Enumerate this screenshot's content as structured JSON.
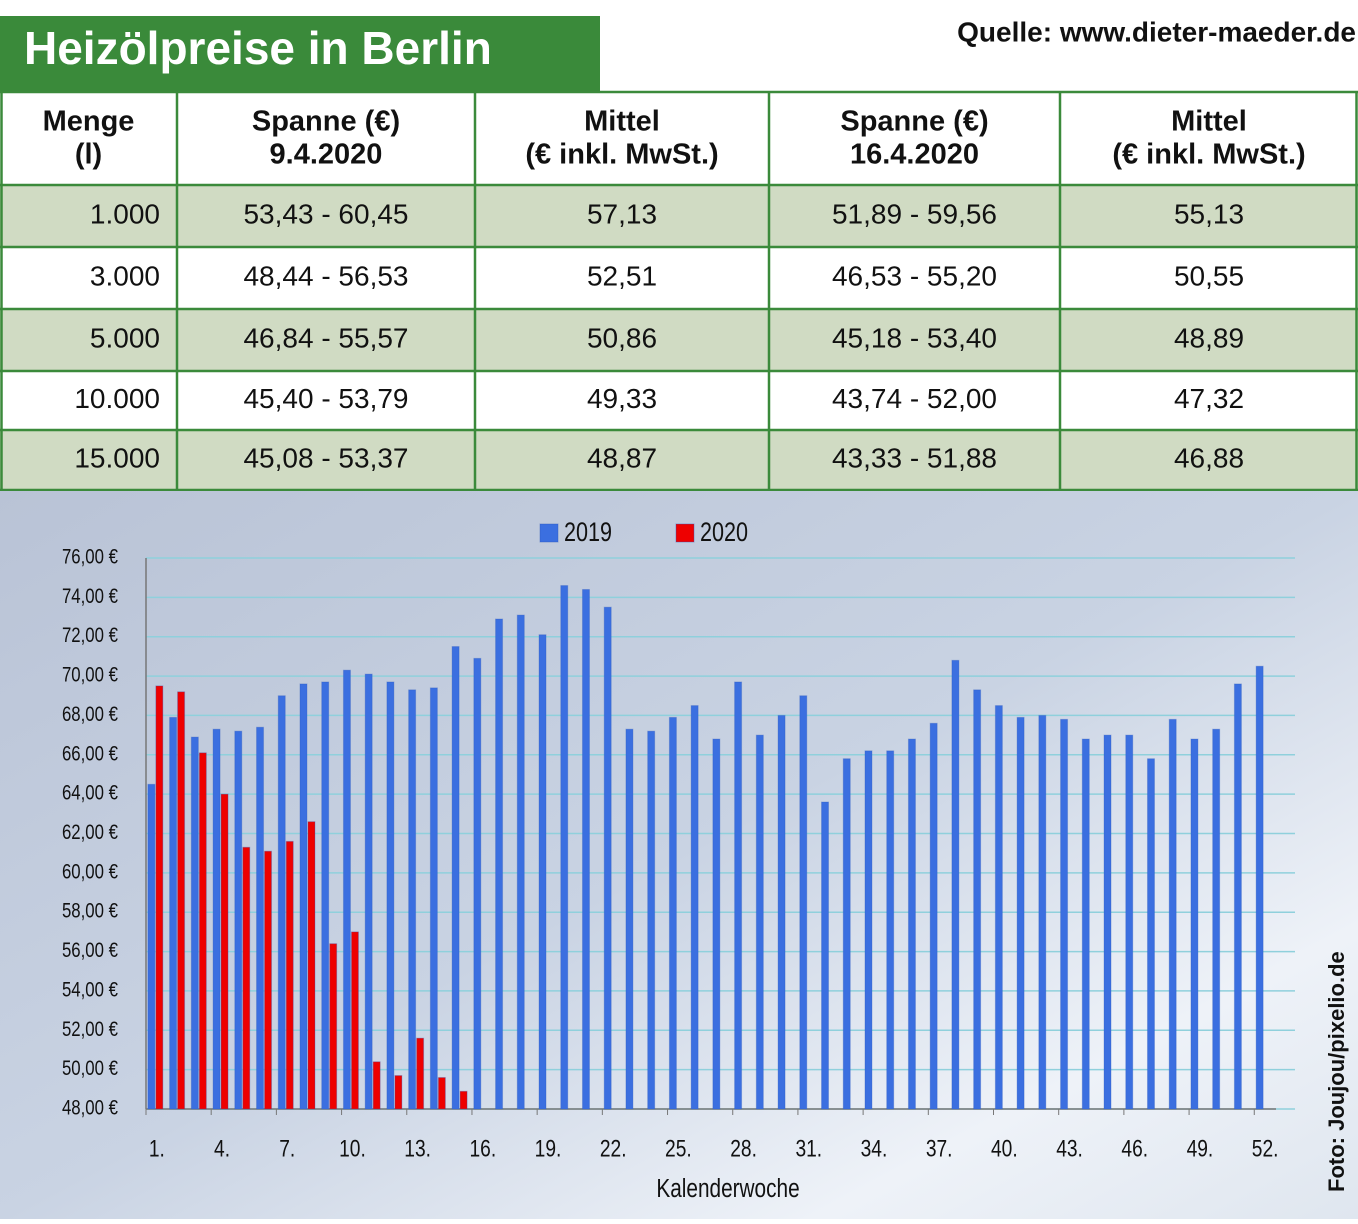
{
  "header": {
    "title": "Heizölpreise in Berlin",
    "source": "Quelle: www.dieter-maeder.de"
  },
  "table": {
    "columns": [
      [
        "Menge",
        "(l)"
      ],
      [
        "Spanne (€)",
        "9.4.2020"
      ],
      [
        "Mittel",
        "(€ inkl. MwSt.)"
      ],
      [
        "Spanne (€)",
        "16.4.2020"
      ],
      [
        "Mittel",
        "(€ inkl. MwSt.)"
      ]
    ],
    "rows": [
      [
        "1.000",
        "53,43 - 60,45",
        "57,13",
        "51,89 - 59,56",
        "55,13"
      ],
      [
        "3.000",
        "48,44 - 56,53",
        "52,51",
        "46,53 - 55,20",
        "50,55"
      ],
      [
        "5.000",
        "46,84 - 55,57",
        "50,86",
        "45,18 - 53,40",
        "48,89"
      ],
      [
        "10.000",
        "45,40 - 53,79",
        "49,33",
        "43,74 - 52,00",
        "47,32"
      ],
      [
        "15.000",
        "45,08 - 53,37",
        "48,87",
        "43,33 - 51,88",
        "46,88"
      ]
    ]
  },
  "chart_data": {
    "type": "bar",
    "x_label": "Kalenderwoche",
    "credit": "Foto: Joujou/pixelio.de",
    "categories": [
      "1.",
      null,
      null,
      "4.",
      null,
      null,
      "7.",
      null,
      null,
      "10.",
      null,
      null,
      "13.",
      null,
      null,
      "16.",
      null,
      null,
      "19.",
      null,
      null,
      "22.",
      null,
      null,
      "25.",
      null,
      null,
      "28.",
      null,
      null,
      "31.",
      null,
      null,
      "34.",
      null,
      null,
      "37.",
      null,
      null,
      "40.",
      null,
      null,
      "43.",
      null,
      null,
      "46.",
      null,
      null,
      "49.",
      null,
      null,
      "52."
    ],
    "series": [
      {
        "name": "2019",
        "color": "#3b6fe0",
        "values": [
          64.5,
          67.9,
          66.9,
          67.3,
          67.2,
          67.4,
          69.0,
          69.6,
          69.7,
          70.3,
          70.1,
          69.7,
          69.3,
          69.4,
          71.5,
          70.9,
          72.9,
          73.1,
          72.1,
          74.6,
          74.4,
          73.5,
          67.3,
          67.2,
          67.9,
          68.5,
          66.8,
          69.7,
          67.0,
          68.0,
          69.0,
          63.6,
          65.8,
          66.2,
          66.2,
          66.8,
          67.6,
          70.8,
          69.3,
          68.5,
          67.9,
          68.0,
          67.8,
          66.8,
          67.0,
          67.0,
          65.8,
          67.8,
          66.8,
          67.3,
          69.6,
          70.5
        ]
      },
      {
        "name": "2020",
        "color": "#ee0000",
        "values": [
          69.5,
          69.2,
          66.1,
          64.0,
          61.3,
          61.1,
          61.6,
          62.6,
          56.4,
          57.0,
          50.4,
          49.7,
          51.6,
          49.6,
          48.9,
          null,
          null,
          null,
          null,
          null,
          null,
          null,
          null,
          null,
          null,
          null,
          null,
          null,
          null,
          null,
          null,
          null,
          null,
          null,
          null,
          null,
          null,
          null,
          null,
          null,
          null,
          null,
          null,
          null,
          null,
          null,
          null,
          null,
          null,
          null,
          null,
          null
        ]
      }
    ],
    "ylim": [
      48,
      76
    ],
    "yticks": [
      {
        "value": 48,
        "label": "48,00 €"
      },
      {
        "value": 50,
        "label": "50,00 €"
      },
      {
        "value": 52,
        "label": "52,00 €"
      },
      {
        "value": 54,
        "label": "54,00 €"
      },
      {
        "value": 56,
        "label": "56,00 €"
      },
      {
        "value": 58,
        "label": "58,00 €"
      },
      {
        "value": 60,
        "label": "60,00 €"
      },
      {
        "value": 62,
        "label": "62,00 €"
      },
      {
        "value": 64,
        "label": "64,00 €"
      },
      {
        "value": 66,
        "label": "66,00 €"
      },
      {
        "value": 68,
        "label": "68,00 €"
      },
      {
        "value": 70,
        "label": "70,00 €"
      },
      {
        "value": 72,
        "label": "72,00 €"
      },
      {
        "value": 74,
        "label": "74,00 €"
      },
      {
        "value": 76,
        "label": "76,00 €"
      }
    ],
    "grid": true,
    "legend": "top"
  }
}
